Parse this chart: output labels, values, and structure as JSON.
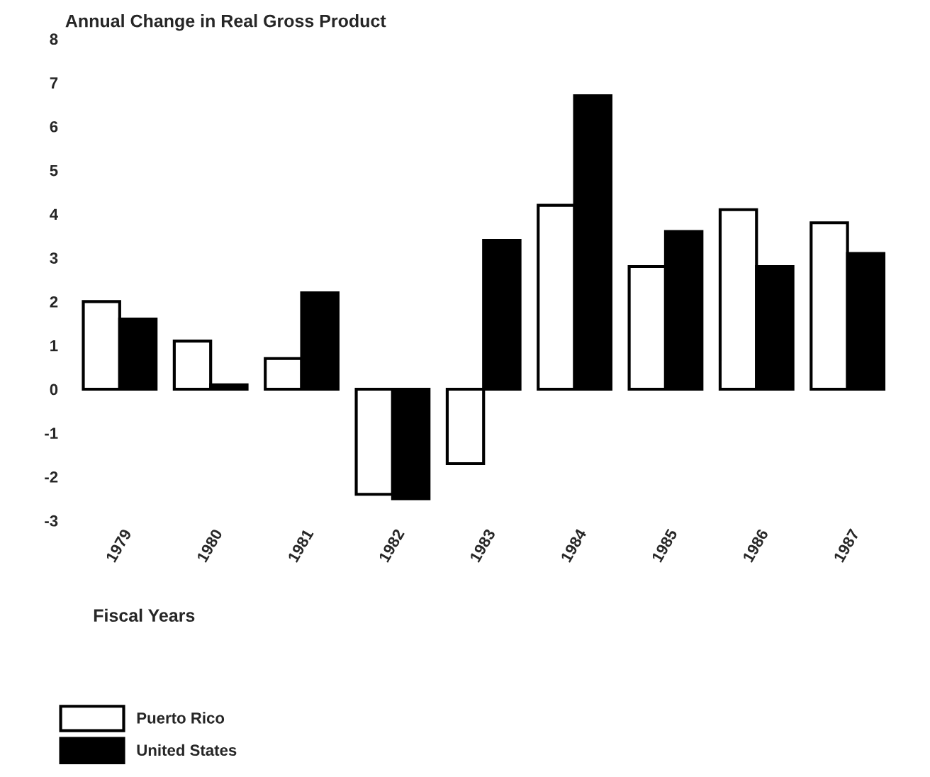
{
  "chart_data": {
    "type": "bar",
    "title": "Annual Change in Real Gross Product",
    "xlabel": "Fiscal Years",
    "categories": [
      "1979",
      "1980",
      "1981",
      "1982",
      "1983",
      "1984",
      "1985",
      "1986",
      "1987"
    ],
    "series": [
      {
        "name": "Puerto Rico",
        "color": "#ffffff",
        "values": [
          2.0,
          1.1,
          0.7,
          -2.4,
          -1.7,
          4.2,
          2.8,
          4.1,
          3.8
        ]
      },
      {
        "name": "United States",
        "color": "#000000",
        "values": [
          1.6,
          0.1,
          2.2,
          -2.5,
          3.4,
          6.7,
          3.6,
          2.8,
          3.1
        ]
      }
    ],
    "ylim": [
      -3,
      8
    ],
    "yticks": [
      -3,
      -2,
      -1,
      0,
      1,
      2,
      3,
      4,
      5,
      6,
      7,
      8
    ],
    "grid": false,
    "legend": "bottom left"
  }
}
